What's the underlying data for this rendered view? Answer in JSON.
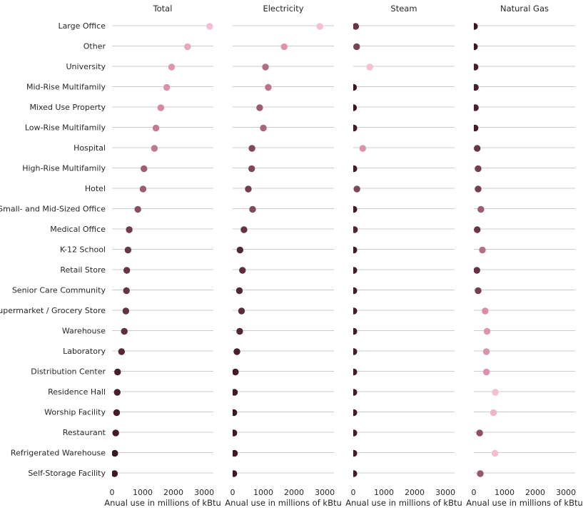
{
  "chart_data": {
    "type": "scatter",
    "categories": [
      "Large Office",
      "Other",
      "University",
      "Mid-Rise Multifamily",
      "Mixed Use Property",
      "Low-Rise Multifamily",
      "Hospital",
      "High-Rise Multifamily",
      "Hotel",
      "Small- and Mid-Sized Office",
      "Medical Office",
      "K-12 School",
      "Retail Store",
      "Senior Care Community",
      "Supermarket / Grocery Store",
      "Warehouse",
      "Laboratory",
      "Distribution Center",
      "Residence Hall",
      "Worship Facility",
      "Restaurant",
      "Refrigerated Warehouse",
      "Self-Storage Facility"
    ],
    "xlim": [
      0,
      3300
    ],
    "xticks": [
      0,
      1000,
      2000,
      3000
    ],
    "xlabel": "Anual use in millions of kBtu",
    "grid": "horizontal",
    "palette": {
      "light": "#f4c0d1",
      "mid": "#d98aa6",
      "dark": "#3d1820"
    },
    "panels": [
      {
        "title": "Total",
        "values": [
          3180,
          2460,
          1940,
          1780,
          1590,
          1430,
          1380,
          1040,
          1010,
          840,
          560,
          520,
          480,
          470,
          450,
          400,
          310,
          180,
          170,
          150,
          120,
          90,
          80
        ]
      },
      {
        "title": "Electricity",
        "values": [
          2840,
          1680,
          1070,
          1160,
          880,
          1000,
          630,
          620,
          510,
          650,
          370,
          240,
          320,
          220,
          290,
          230,
          140,
          90,
          60,
          40,
          40,
          60,
          40
        ]
      },
      {
        "title": "Steam",
        "values": [
          80,
          110,
          540,
          10,
          10,
          20,
          310,
          20,
          120,
          20,
          40,
          20,
          20,
          20,
          20,
          20,
          20,
          20,
          20,
          20,
          20,
          20,
          20
        ]
      },
      {
        "title": "Natural Gas",
        "values": [
          20,
          20,
          40,
          50,
          50,
          40,
          110,
          140,
          140,
          230,
          110,
          280,
          100,
          140,
          370,
          430,
          410,
          410,
          700,
          640,
          190,
          690,
          210
        ]
      }
    ]
  }
}
